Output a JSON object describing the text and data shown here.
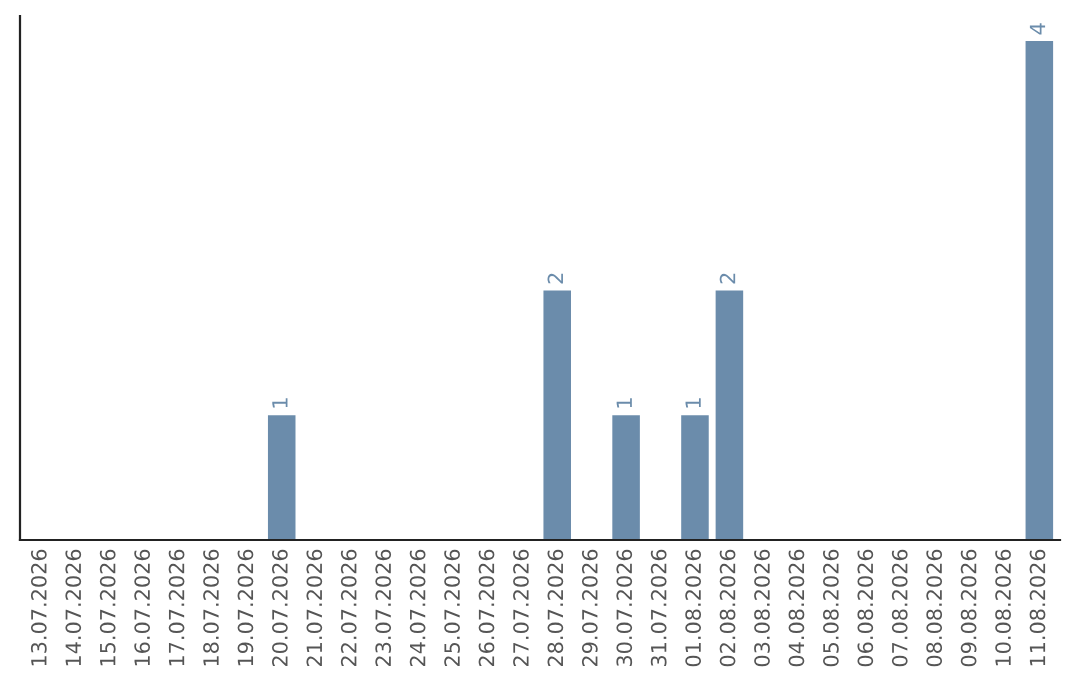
{
  "chart_data": {
    "type": "bar",
    "categories": [
      "13.07.2026",
      "14.07.2026",
      "15.07.2026",
      "16.07.2026",
      "17.07.2026",
      "18.07.2026",
      "19.07.2026",
      "20.07.2026",
      "21.07.2026",
      "22.07.2026",
      "23.07.2026",
      "24.07.2026",
      "25.07.2026",
      "26.07.2026",
      "27.07.2026",
      "28.07.2026",
      "29.07.2026",
      "30.07.2026",
      "31.07.2026",
      "01.08.2026",
      "02.08.2026",
      "03.08.2026",
      "04.08.2026",
      "05.08.2026",
      "06.08.2026",
      "07.08.2026",
      "08.08.2026",
      "09.08.2026",
      "10.08.2026",
      "11.08.2026"
    ],
    "values": [
      0,
      0,
      0,
      0,
      0,
      0,
      0,
      1,
      0,
      0,
      0,
      0,
      0,
      0,
      0,
      2,
      0,
      1,
      0,
      1,
      2,
      0,
      0,
      0,
      0,
      0,
      0,
      0,
      0,
      4
    ],
    "value_labels": [
      null,
      null,
      null,
      null,
      null,
      null,
      null,
      "1",
      null,
      null,
      null,
      null,
      null,
      null,
      null,
      "2",
      null,
      "1",
      null,
      "1",
      "2",
      null,
      null,
      null,
      null,
      null,
      null,
      null,
      null,
      "4"
    ],
    "color": "#6b8cab",
    "ylim": [
      0,
      4.2
    ],
    "tick_labels": "x",
    "grid": false
  }
}
